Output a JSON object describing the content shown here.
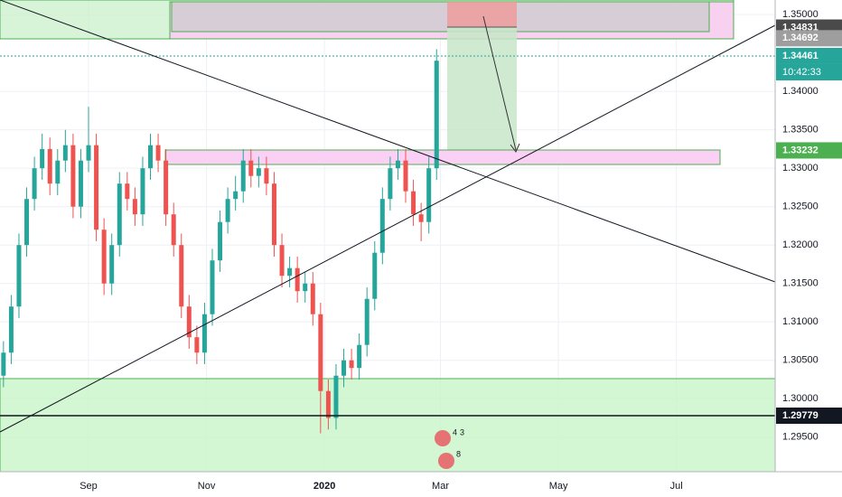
{
  "chart_data": {
    "type": "candlestick",
    "x": [
      -44,
      -40,
      -36,
      -32,
      -28,
      -24,
      -20,
      -16,
      -12,
      -8,
      -4,
      0,
      4,
      8,
      12,
      16,
      20,
      24,
      28,
      32,
      36,
      40,
      44,
      48,
      52,
      56,
      60,
      64,
      68,
      72,
      76,
      80,
      84,
      88,
      92,
      96,
      100,
      104,
      108,
      112,
      116,
      120,
      124,
      128,
      132,
      136,
      140,
      144,
      148,
      152,
      156,
      160,
      164,
      168,
      172,
      176,
      180
    ],
    "open": [
      1.303,
      1.306,
      1.312,
      1.32,
      1.326,
      1.33,
      1.3325,
      1.328,
      1.331,
      1.333,
      1.325,
      1.331,
      1.333,
      1.322,
      1.315,
      1.32,
      1.328,
      1.326,
      1.324,
      1.33,
      1.333,
      1.331,
      1.324,
      1.32,
      1.312,
      1.308,
      1.306,
      1.311,
      1.318,
      1.323,
      1.326,
      1.327,
      1.331,
      1.329,
      1.33,
      1.328,
      1.32,
      1.316,
      1.317,
      1.314,
      1.315,
      1.311,
      1.301,
      1.2975,
      1.303,
      1.305,
      1.304,
      1.307,
      1.313,
      1.319,
      1.326,
      1.33,
      1.331,
      1.327,
      1.324,
      1.323,
      1.33
    ],
    "high": [
      1.3075,
      1.3135,
      1.3215,
      1.3275,
      1.3315,
      1.3345,
      1.334,
      1.3325,
      1.335,
      1.3345,
      1.3325,
      1.338,
      1.3345,
      1.3235,
      1.3215,
      1.3295,
      1.3295,
      1.3275,
      1.3315,
      1.3345,
      1.3345,
      1.3325,
      1.3255,
      1.3215,
      1.3135,
      1.3095,
      1.3125,
      1.3195,
      1.3245,
      1.3275,
      1.329,
      1.3325,
      1.3325,
      1.3315,
      1.3315,
      1.3295,
      1.3215,
      1.3185,
      1.3185,
      1.3165,
      1.3165,
      1.3125,
      1.3025,
      1.3045,
      1.3065,
      1.3065,
      1.3085,
      1.3145,
      1.3205,
      1.3275,
      1.3315,
      1.3325,
      1.3325,
      1.3285,
      1.3255,
      1.3315,
      1.3455
    ],
    "low": [
      1.3015,
      1.3045,
      1.3105,
      1.3185,
      1.3245,
      1.3285,
      1.3265,
      1.3265,
      1.3295,
      1.3235,
      1.3235,
      1.3295,
      1.3205,
      1.3135,
      1.3135,
      1.3185,
      1.3245,
      1.3225,
      1.3225,
      1.3285,
      1.3295,
      1.3225,
      1.3185,
      1.3105,
      1.3065,
      1.3045,
      1.3045,
      1.3095,
      1.3165,
      1.3215,
      1.3245,
      1.3255,
      1.3275,
      1.3275,
      1.3265,
      1.3185,
      1.3145,
      1.3145,
      1.3125,
      1.3125,
      1.3095,
      1.2955,
      1.296,
      1.296,
      1.3015,
      1.3025,
      1.3025,
      1.3055,
      1.3115,
      1.3175,
      1.3245,
      1.3285,
      1.3255,
      1.3225,
      1.3205,
      1.3215,
      1.3285
    ],
    "close": [
      1.306,
      1.312,
      1.32,
      1.326,
      1.33,
      1.3325,
      1.328,
      1.331,
      1.333,
      1.325,
      1.331,
      1.333,
      1.322,
      1.315,
      1.32,
      1.328,
      1.326,
      1.324,
      1.33,
      1.333,
      1.331,
      1.324,
      1.32,
      1.312,
      1.308,
      1.306,
      1.311,
      1.318,
      1.323,
      1.326,
      1.327,
      1.331,
      1.329,
      1.33,
      1.328,
      1.32,
      1.316,
      1.317,
      1.314,
      1.315,
      1.311,
      1.301,
      1.2975,
      1.303,
      1.305,
      1.304,
      1.307,
      1.313,
      1.319,
      1.326,
      1.33,
      1.331,
      1.327,
      1.324,
      1.323,
      1.33,
      1.344
    ],
    "up_color": "#26a69a",
    "down_color": "#ef5350",
    "xlim": [
      -45.8,
      355.1
    ],
    "xticks": [
      {
        "value": 0,
        "label": "Sep"
      },
      {
        "value": 61,
        "label": "Nov"
      },
      {
        "value": 122,
        "label": "2020"
      },
      {
        "value": 182,
        "label": "Mar"
      },
      {
        "value": 243,
        "label": "May"
      },
      {
        "value": 304,
        "label": "Jul"
      }
    ],
    "ylim": [
      1.2905,
      1.3519
    ],
    "yticks": [
      {
        "value": 1.295,
        "label": "1.29500"
      },
      {
        "value": 1.3,
        "label": "1.30000"
      },
      {
        "value": 1.305,
        "label": "1.30500"
      },
      {
        "value": 1.31,
        "label": "1.31000"
      },
      {
        "value": 1.315,
        "label": "1.31500"
      },
      {
        "value": 1.32,
        "label": "1.32000"
      },
      {
        "value": 1.325,
        "label": "1.32500"
      },
      {
        "value": 1.33,
        "label": "1.33000"
      },
      {
        "value": 1.335,
        "label": "1.33500"
      },
      {
        "value": 1.34,
        "label": "1.34000"
      },
      {
        "value": 1.35,
        "label": "1.35000"
      }
    ],
    "grid": true,
    "price_tags": [
      {
        "value": 1.34831,
        "label": "1.34831",
        "color": "#4a4a4a"
      },
      {
        "value": 1.34692,
        "label": "1.34692",
        "color": "#9e9e9e"
      },
      {
        "value": 1.34461,
        "label": "1.34461",
        "color": "#26a69a",
        "line": "dotted",
        "countdown": "10:42:33"
      },
      {
        "value": 1.33232,
        "label": "1.33232",
        "color": "#4caf50"
      },
      {
        "value": 1.29779,
        "label": "1.29779",
        "color": "#131722",
        "line": "solid"
      }
    ],
    "event_counts": [
      4,
      3,
      8
    ]
  }
}
